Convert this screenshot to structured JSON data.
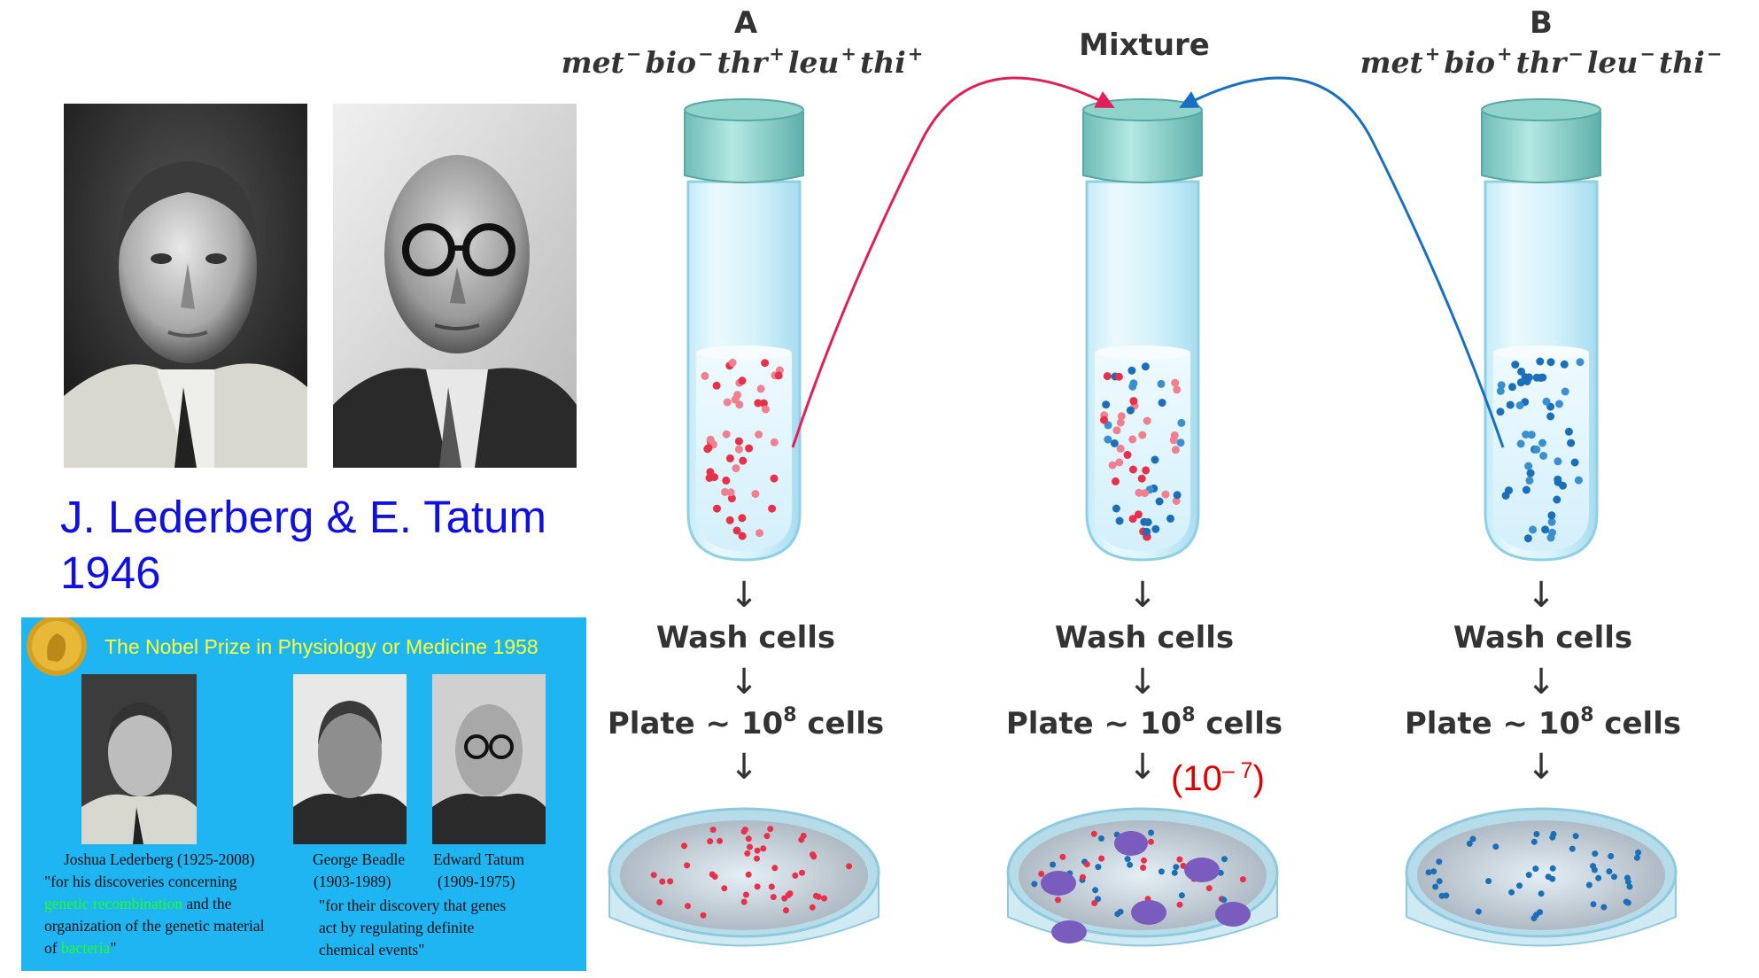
{
  "left_panel": {
    "caption_line1": "J. Lederberg & E. Tatum",
    "caption_line2": "1946",
    "nobel": {
      "title": "The Nobel Prize in Physiology or Medicine 1958",
      "lederberg_name": "Joshua Lederberg (1925-2008)",
      "lederberg_quote_1": "\"for his discoveries concerning",
      "lederberg_quote_2a": "genetic recombination",
      "lederberg_quote_2b": " and the",
      "lederberg_quote_3": "organization of the genetic material",
      "lederberg_quote_4a": "of ",
      "lederberg_quote_4b": "bacteria",
      "lederberg_quote_4c": "\"",
      "beadle_name": "George Beadle",
      "beadle_years": "(1903-1989)",
      "tatum_name": "Edward Tatum",
      "tatum_years": "(1909-1975)",
      "bt_quote_1": "\"for their discovery that genes",
      "bt_quote_2": "act by regulating definite",
      "bt_quote_3": "chemical events\""
    }
  },
  "diagram": {
    "colors": {
      "strain_a": "#e8304a",
      "strain_b": "#1a6fb8",
      "colony": "#7a5cbf",
      "arrow_a": "#e0205a",
      "arrow_b": "#1a70c0",
      "note": "#e00000"
    },
    "tube_a": {
      "label": "A",
      "genotype": [
        {
          "gene": "met",
          "sign": "−"
        },
        {
          "gene": "bio",
          "sign": "−"
        },
        {
          "gene": "thr",
          "sign": "+"
        },
        {
          "gene": "leu",
          "sign": "+"
        },
        {
          "gene": "thi",
          "sign": "+"
        }
      ]
    },
    "tube_mix": {
      "label": "Mixture"
    },
    "tube_b": {
      "label": "B",
      "genotype": [
        {
          "gene": "met",
          "sign": "+"
        },
        {
          "gene": "bio",
          "sign": "+"
        },
        {
          "gene": "thr",
          "sign": "−"
        },
        {
          "gene": "leu",
          "sign": "−"
        },
        {
          "gene": "thi",
          "sign": "−"
        }
      ]
    },
    "step_wash": "Wash cells",
    "step_plate_prefix": "Plate ~ 10",
    "step_plate_exp": "8",
    "step_plate_suffix": " cells",
    "frequency_note_base": "(10",
    "frequency_note_exp": "– 7",
    "frequency_note_close": ")"
  }
}
